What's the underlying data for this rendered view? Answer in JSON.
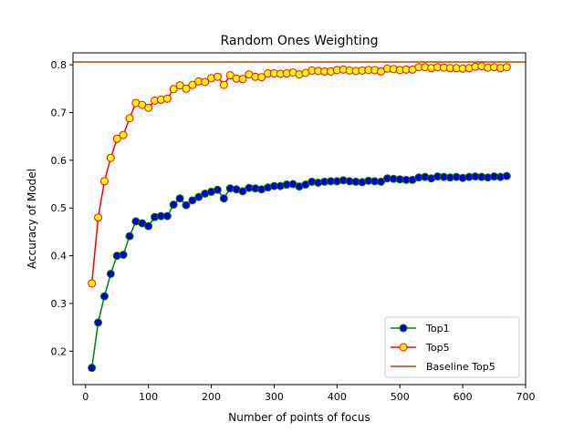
{
  "chart_data": {
    "type": "line",
    "title": "Random Ones Weighting",
    "xlabel": "Number of points of focus",
    "ylabel": "Accuracy of Model",
    "xlim": [
      -20,
      700
    ],
    "ylim": [
      0.13,
      0.825
    ],
    "xticks": [
      0,
      100,
      200,
      300,
      400,
      500,
      600,
      700
    ],
    "yticks": [
      0.2,
      0.3,
      0.4,
      0.5,
      0.6,
      0.7,
      0.8
    ],
    "xtick_labels": [
      "0",
      "100",
      "200",
      "300",
      "400",
      "500",
      "600",
      "700"
    ],
    "ytick_labels": [
      "0.2",
      "0.3",
      "0.4",
      "0.5",
      "0.6",
      "0.7",
      "0.8"
    ],
    "grid": false,
    "legend_position": "lower-right",
    "x": [
      10,
      20,
      30,
      40,
      50,
      60,
      70,
      80,
      90,
      100,
      110,
      120,
      130,
      140,
      150,
      160,
      170,
      180,
      190,
      200,
      210,
      220,
      230,
      240,
      250,
      260,
      270,
      280,
      290,
      300,
      310,
      320,
      330,
      340,
      350,
      360,
      370,
      380,
      390,
      400,
      410,
      420,
      430,
      440,
      450,
      460,
      470,
      480,
      490,
      500,
      510,
      520,
      530,
      540,
      550,
      560,
      570,
      580,
      590,
      600,
      610,
      620,
      630,
      640,
      650,
      660,
      670
    ],
    "series": [
      {
        "name": "Top1",
        "line_color": "#008000",
        "marker_face": "#0000cc",
        "marker_edge": "#008000",
        "values": [
          0.165,
          0.26,
          0.315,
          0.362,
          0.4,
          0.402,
          0.441,
          0.472,
          0.468,
          0.462,
          0.481,
          0.483,
          0.483,
          0.507,
          0.52,
          0.506,
          0.516,
          0.523,
          0.53,
          0.534,
          0.538,
          0.52,
          0.541,
          0.539,
          0.535,
          0.542,
          0.541,
          0.539,
          0.543,
          0.546,
          0.546,
          0.549,
          0.55,
          0.545,
          0.549,
          0.555,
          0.553,
          0.555,
          0.556,
          0.556,
          0.558,
          0.556,
          0.555,
          0.554,
          0.557,
          0.556,
          0.555,
          0.562,
          0.561,
          0.56,
          0.559,
          0.559,
          0.564,
          0.565,
          0.562,
          0.566,
          0.565,
          0.564,
          0.565,
          0.563,
          0.565,
          0.566,
          0.565,
          0.564,
          0.566,
          0.565,
          0.567
        ]
      },
      {
        "name": "Top5",
        "line_color": "#ff0000",
        "marker_face": "#ffff00",
        "marker_edge": "#ff0000",
        "values": [
          0.342,
          0.48,
          0.556,
          0.605,
          0.645,
          0.653,
          0.688,
          0.72,
          0.716,
          0.71,
          0.725,
          0.727,
          0.729,
          0.749,
          0.757,
          0.75,
          0.758,
          0.765,
          0.764,
          0.772,
          0.775,
          0.758,
          0.778,
          0.771,
          0.77,
          0.78,
          0.775,
          0.774,
          0.782,
          0.782,
          0.781,
          0.782,
          0.784,
          0.78,
          0.783,
          0.788,
          0.787,
          0.786,
          0.786,
          0.789,
          0.79,
          0.788,
          0.787,
          0.788,
          0.789,
          0.789,
          0.786,
          0.792,
          0.791,
          0.789,
          0.79,
          0.79,
          0.795,
          0.795,
          0.793,
          0.795,
          0.794,
          0.793,
          0.793,
          0.792,
          0.793,
          0.796,
          0.797,
          0.794,
          0.795,
          0.793,
          0.795
        ]
      }
    ],
    "baseline": {
      "name": "Baseline Top5",
      "value": 0.806,
      "color": "#b5400d"
    }
  }
}
